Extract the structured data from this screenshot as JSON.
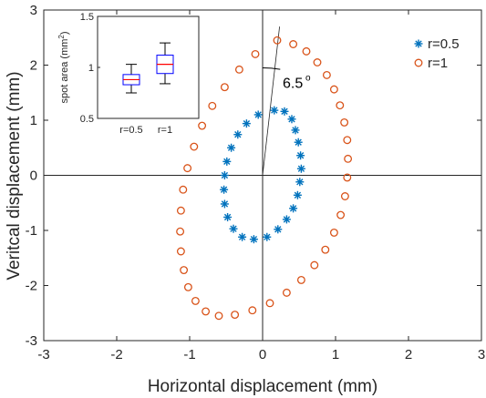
{
  "chart_data": [
    {
      "type": "scatter",
      "title": "",
      "xlabel": "Horizontal displacement (mm)",
      "ylabel": "Veritcal displacement (mm)",
      "xlim": [
        -3,
        3
      ],
      "ylim": [
        -3,
        3
      ],
      "xticks": [
        "-3",
        "-2",
        "-1",
        "0",
        "1",
        "2",
        "3"
      ],
      "yticks": [
        "-3",
        "-2",
        "-1",
        "0",
        "1",
        "2",
        "3"
      ],
      "grid": false,
      "crosshair_at_origin": true,
      "legend_position": "top-right",
      "series": [
        {
          "name": "r=0.5",
          "marker": "asterisk",
          "color": "#0072BD",
          "points": [
            [
              0.16,
              1.18
            ],
            [
              0.3,
              1.16
            ],
            [
              0.4,
              1.02
            ],
            [
              0.45,
              0.82
            ],
            [
              0.49,
              0.6
            ],
            [
              0.52,
              0.36
            ],
            [
              0.53,
              0.12
            ],
            [
              0.51,
              -0.12
            ],
            [
              0.48,
              -0.36
            ],
            [
              0.42,
              -0.6
            ],
            [
              0.33,
              -0.8
            ],
            [
              0.21,
              -0.98
            ],
            [
              0.06,
              -1.12
            ],
            [
              -0.12,
              -1.16
            ],
            [
              -0.28,
              -1.12
            ],
            [
              -0.4,
              -0.97
            ],
            [
              -0.48,
              -0.76
            ],
            [
              -0.52,
              -0.52
            ],
            [
              -0.53,
              -0.26
            ],
            [
              -0.52,
              0.0
            ],
            [
              -0.49,
              0.25
            ],
            [
              -0.43,
              0.5
            ],
            [
              -0.34,
              0.74
            ],
            [
              -0.22,
              0.94
            ],
            [
              -0.06,
              1.1
            ]
          ]
        },
        {
          "name": "r=1",
          "marker": "circle",
          "color": "#D95319",
          "points": [
            [
              0.2,
              2.45
            ],
            [
              0.42,
              2.38
            ],
            [
              0.6,
              2.25
            ],
            [
              0.75,
              2.05
            ],
            [
              0.88,
              1.82
            ],
            [
              0.98,
              1.56
            ],
            [
              1.06,
              1.27
            ],
            [
              1.12,
              0.96
            ],
            [
              1.16,
              0.64
            ],
            [
              1.17,
              0.3
            ],
            [
              1.16,
              -0.04
            ],
            [
              1.13,
              -0.38
            ],
            [
              1.07,
              -0.72
            ],
            [
              0.98,
              -1.04
            ],
            [
              0.86,
              -1.35
            ],
            [
              0.71,
              -1.63
            ],
            [
              0.53,
              -1.9
            ],
            [
              0.33,
              -2.13
            ],
            [
              0.1,
              -2.32
            ],
            [
              -0.14,
              -2.45
            ],
            [
              -0.38,
              -2.53
            ],
            [
              -0.6,
              -2.55
            ],
            [
              -0.78,
              -2.47
            ],
            [
              -0.92,
              -2.28
            ],
            [
              -1.02,
              -2.03
            ],
            [
              -1.08,
              -1.72
            ],
            [
              -1.12,
              -1.38
            ],
            [
              -1.13,
              -1.02
            ],
            [
              -1.12,
              -0.64
            ],
            [
              -1.09,
              -0.26
            ],
            [
              -1.03,
              0.13
            ],
            [
              -0.94,
              0.52
            ],
            [
              -0.83,
              0.9
            ],
            [
              -0.69,
              1.26
            ],
            [
              -0.52,
              1.6
            ],
            [
              -0.32,
              1.92
            ],
            [
              -0.1,
              2.2
            ]
          ]
        }
      ],
      "annotation": {
        "text": "6.5",
        "superscript": "o",
        "reference_line_angle_from_vertical_deg": 6.5
      }
    },
    {
      "type": "box",
      "title": "",
      "xlabel": "",
      "ylabel": "spot area (mm",
      "ylabel_superscript": "2",
      "ylabel_suffix": ")",
      "ylim": [
        0.5,
        1.5
      ],
      "yticks": [
        "0.5",
        "1",
        "1.5"
      ],
      "categories": [
        "r=0.5",
        "r=1"
      ],
      "box_color": "#0000FF",
      "median_color": "#FF0000",
      "boxes": [
        {
          "category": "r=0.5",
          "whisker_low": 0.75,
          "q1": 0.83,
          "median": 0.88,
          "q3": 0.93,
          "whisker_high": 1.03
        },
        {
          "category": "r=1",
          "whisker_low": 0.84,
          "q1": 0.94,
          "median": 1.03,
          "q3": 1.12,
          "whisker_high": 1.24
        }
      ]
    }
  ]
}
